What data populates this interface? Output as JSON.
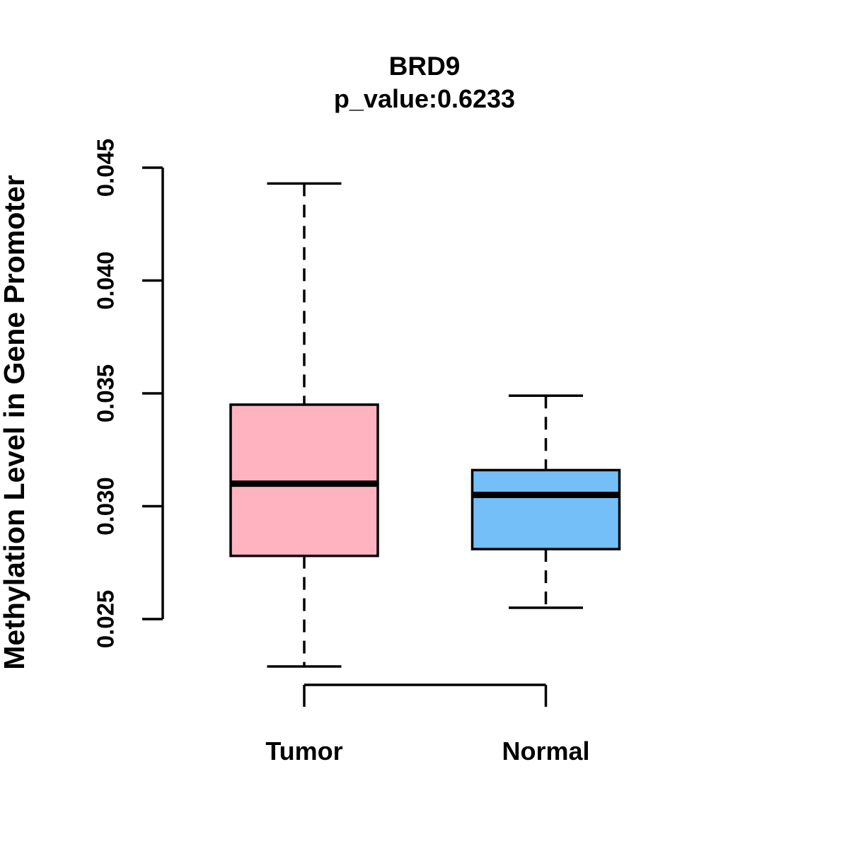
{
  "title": "BRD9",
  "subtitle": "p_value:0.6233",
  "ylabel": "Methylation Level in Gene Promoter",
  "colors": {
    "tumor_fill": "#FFB3C1",
    "normal_fill": "#74BFF7",
    "line": "#000000",
    "background": "#FFFFFF"
  },
  "chart_data": {
    "type": "boxplot",
    "title": "BRD9",
    "subtitle": "p_value:0.6233",
    "xlabel": "",
    "ylabel": "Methylation Level in Gene Promoter",
    "categories": [
      "Tumor",
      "Normal"
    ],
    "series": [
      {
        "name": "Tumor",
        "color": "#FFB3C1",
        "whisker_low": 0.0229,
        "q1": 0.0278,
        "median": 0.031,
        "q3": 0.0345,
        "whisker_high": 0.0443
      },
      {
        "name": "Normal",
        "color": "#74BFF7",
        "whisker_low": 0.0255,
        "q1": 0.0281,
        "median": 0.0305,
        "q3": 0.0316,
        "whisker_high": 0.0349
      }
    ],
    "y_ticks": [
      0.025,
      0.03,
      0.035,
      0.04,
      0.045
    ],
    "y_tick_labels": [
      "0.025",
      "0.030",
      "0.035",
      "0.040",
      "0.045"
    ],
    "ylim": [
      0.025,
      0.045
    ],
    "grid": false,
    "legend": false
  }
}
